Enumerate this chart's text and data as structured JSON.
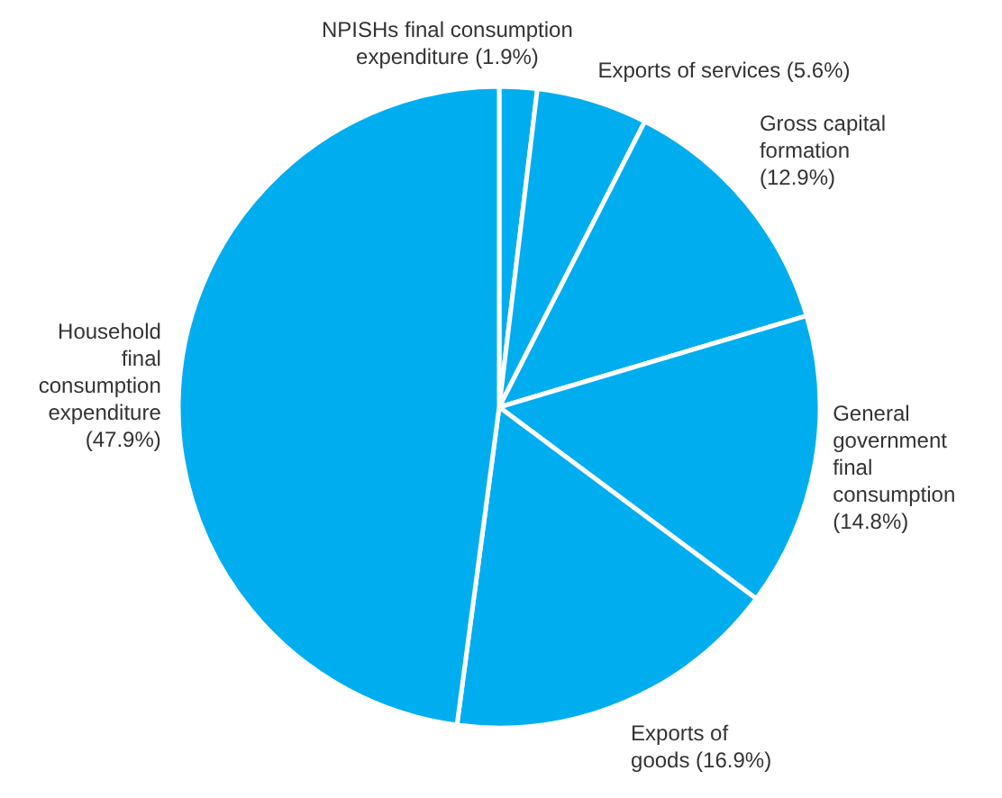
{
  "chart_data": {
    "type": "pie",
    "categories": [
      "NPISHs final consumption expenditure (1.9%)",
      "Exports of services (5.6%)",
      "Gross capital formation (12.9%)",
      "General government final consumption (14.8%)",
      "Exports of goods (16.9%)",
      "Household final consumption expenditure (47.9%)"
    ],
    "values": [
      1.9,
      5.6,
      12.9,
      14.8,
      16.9,
      47.9
    ],
    "colors": [
      "#00aeef",
      "#00aeef",
      "#00aeef",
      "#00aeef",
      "#00aeef",
      "#00aeef"
    ]
  }
}
